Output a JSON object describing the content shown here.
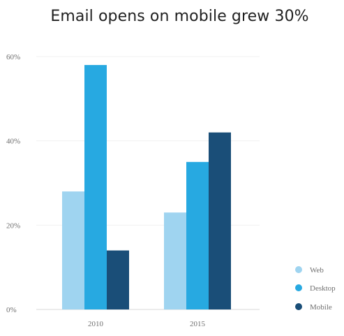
{
  "chart_data": {
    "type": "bar",
    "title": "Email opens on mobile grew 30%",
    "xlabel": "",
    "ylabel": "",
    "categories": [
      "2010",
      "2015"
    ],
    "series": [
      {
        "name": "Web",
        "values": [
          28,
          23
        ],
        "color": "#9fd4f0"
      },
      {
        "name": "Desktop",
        "values": [
          58,
          35
        ],
        "color": "#27a9e1"
      },
      {
        "name": "Mobile",
        "values": [
          14,
          42
        ],
        "color": "#1a4e78"
      }
    ],
    "y_ticks": [
      0,
      20,
      40,
      60
    ],
    "y_tick_labels": [
      "0%",
      "20%",
      "40%",
      "60%"
    ],
    "ylim": [
      0,
      60
    ],
    "grid": true,
    "legend_position": "right-bottom"
  }
}
